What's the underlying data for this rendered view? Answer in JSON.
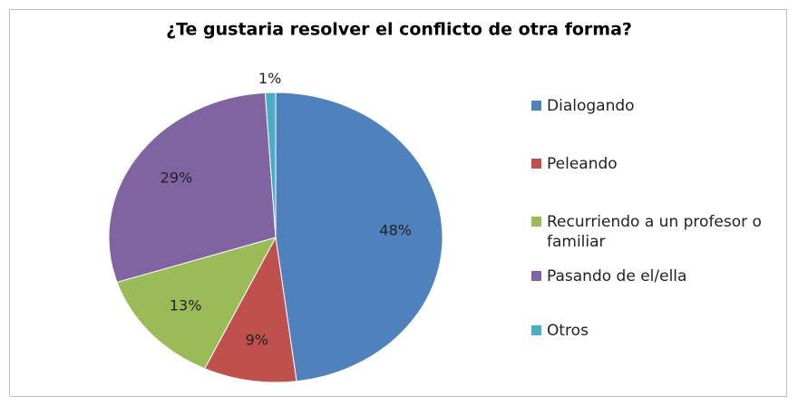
{
  "chart_data": {
    "type": "pie",
    "title": "¿Te gustaria resolver el conflicto de otra forma?",
    "categories": [
      "Dialogando",
      "Peleando",
      "Recurriendo a un profesor o familiar",
      "Pasando de el/ella",
      "Otros"
    ],
    "values": [
      48,
      9,
      13,
      29,
      1
    ],
    "value_labels": [
      "48%",
      "9%",
      "13%",
      "29%",
      "1%"
    ],
    "colors": [
      "#4f81bd",
      "#c0504d",
      "#9bbb59",
      "#8064a2",
      "#4bacc6"
    ],
    "legend": "right"
  }
}
